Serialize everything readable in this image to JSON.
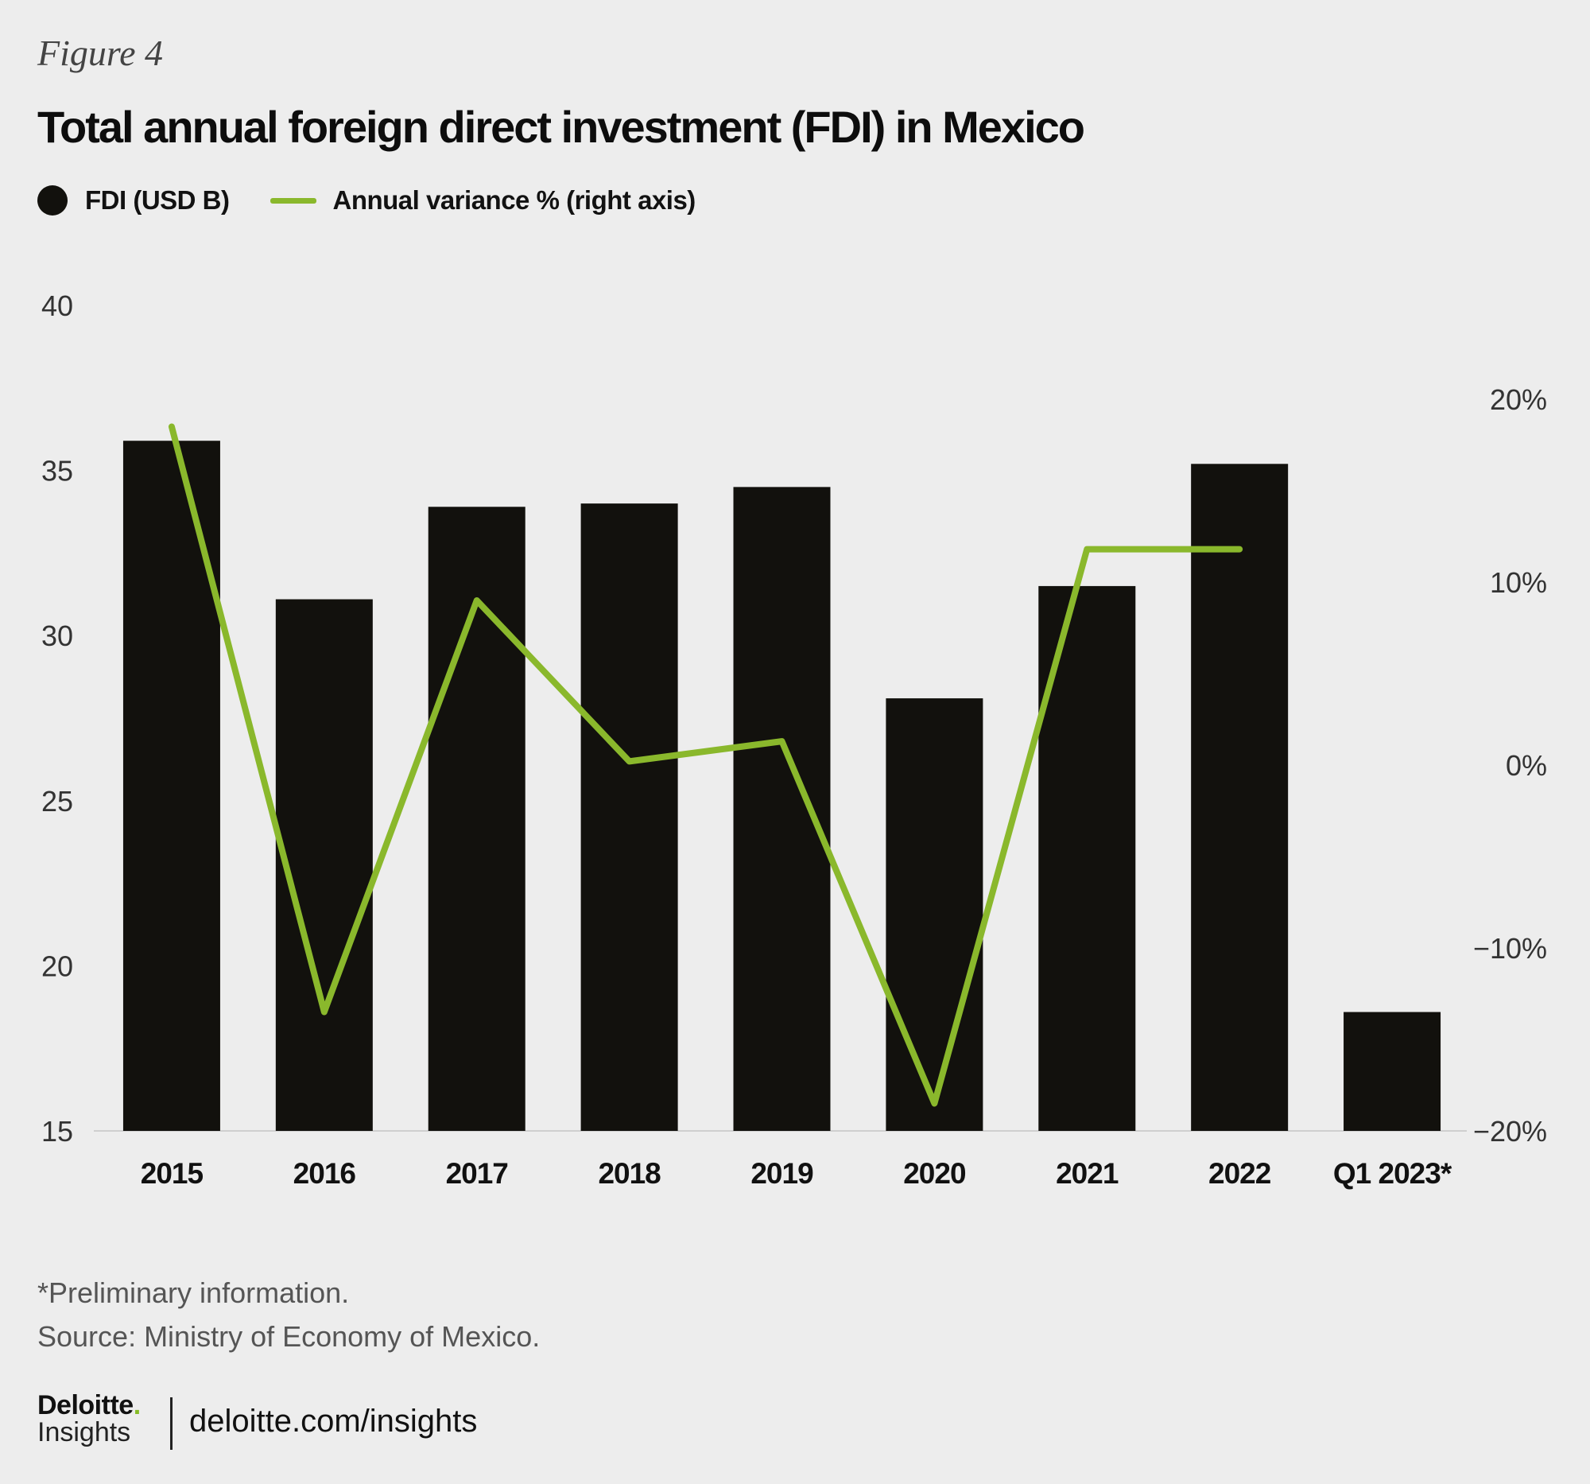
{
  "figure_label": "Figure 4",
  "title": "Total annual foreign direct investment (FDI) in Mexico",
  "legend": {
    "bar_label": "FDI (USD B)",
    "line_label": "Annual variance % (right axis)"
  },
  "colors": {
    "bar": "#12110d",
    "line": "#8ab82c",
    "background": "#ededed",
    "axis": "#cfcfcf"
  },
  "chart_data": {
    "type": "bar",
    "title": "Total annual foreign direct investment (FDI) in Mexico",
    "categories": [
      "2015",
      "2016",
      "2017",
      "2018",
      "2019",
      "2020",
      "2021",
      "2022",
      "Q1 2023*"
    ],
    "series": [
      {
        "name": "FDI (USD B)",
        "type": "bar",
        "axis": "left",
        "values": [
          35.9,
          31.1,
          33.9,
          34.0,
          34.5,
          28.1,
          31.5,
          35.2,
          18.6
        ]
      },
      {
        "name": "Annual variance % (right axis)",
        "type": "line",
        "axis": "right",
        "values": [
          18.5,
          -13.5,
          9.0,
          0.2,
          1.3,
          -18.5,
          11.8,
          11.8,
          null
        ]
      }
    ],
    "y_left": {
      "min": 15,
      "max": 40,
      "ticks": [
        15,
        20,
        25,
        30,
        35,
        40
      ]
    },
    "y_right": {
      "min": -20,
      "max": 25,
      "ticks": [
        -20,
        -10,
        0,
        10,
        20
      ],
      "tick_labels": [
        "−20%",
        "−10%",
        "0%",
        "10%",
        "20%"
      ]
    }
  },
  "footnotes": {
    "note": "*Preliminary information.",
    "source": "Source: Ministry of Economy of Mexico."
  },
  "brand": {
    "name": "Deloitte",
    "period": ".",
    "sub": "Insights",
    "url": "deloitte.com/insights"
  }
}
